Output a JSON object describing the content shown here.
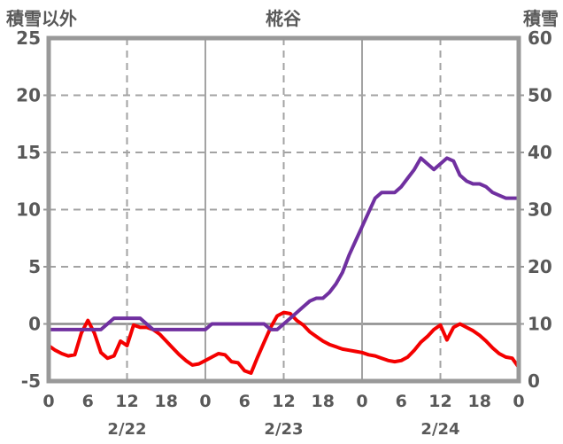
{
  "header": {
    "left_axis_title": "積雪以外",
    "title": "椛谷",
    "right_axis_title": "積雪"
  },
  "chart_data": {
    "type": "line",
    "title": "椛谷",
    "x_axis": {
      "unit": "hour",
      "total_hours": 72,
      "hour_ticks": [
        {
          "hour": 0,
          "label": "0"
        },
        {
          "hour": 6,
          "label": "6"
        },
        {
          "hour": 12,
          "label": "12"
        },
        {
          "hour": 18,
          "label": "18"
        },
        {
          "hour": 24,
          "label": "0"
        },
        {
          "hour": 30,
          "label": "6"
        },
        {
          "hour": 36,
          "label": "12"
        },
        {
          "hour": 42,
          "label": "18"
        },
        {
          "hour": 48,
          "label": "0"
        },
        {
          "hour": 54,
          "label": "6"
        },
        {
          "hour": 60,
          "label": "12"
        },
        {
          "hour": 66,
          "label": "18"
        },
        {
          "hour": 72,
          "label": "0"
        }
      ],
      "date_labels": [
        {
          "label": "2/22",
          "center_hour": 12
        },
        {
          "label": "2/23",
          "center_hour": 36
        },
        {
          "label": "2/24",
          "center_hour": 60
        }
      ],
      "solid_gridline_hours": [
        24,
        48
      ],
      "dashed_gridline_hours": [
        12,
        36,
        60
      ]
    },
    "left_axis": {
      "title": "積雪以外",
      "min": -5,
      "max": 25,
      "ticks": [
        25,
        20,
        15,
        10,
        5,
        0,
        -5
      ],
      "dashed_gridlines": [
        20,
        15,
        10,
        5
      ],
      "zero_line": 0
    },
    "right_axis": {
      "title": "積雪",
      "min": 0,
      "max": 60,
      "ticks": [
        60,
        50,
        40,
        30,
        20,
        10,
        0
      ]
    },
    "series": [
      {
        "name": "積雪以外",
        "axis": "left",
        "color": "#f40000",
        "values": [
          -1.9,
          -2.3,
          -2.6,
          -2.8,
          -2.7,
          -0.8,
          0.3,
          -0.8,
          -2.5,
          -3.0,
          -2.8,
          -1.5,
          -1.9,
          -0.1,
          -0.3,
          -0.3,
          -0.5,
          -0.9,
          -1.5,
          -2.1,
          -2.7,
          -3.2,
          -3.6,
          -3.5,
          -3.2,
          -2.9,
          -2.6,
          -2.7,
          -3.3,
          -3.4,
          -4.1,
          -4.3,
          -2.9,
          -1.6,
          -0.3,
          0.7,
          1.0,
          0.9,
          0.3,
          -0.1,
          -0.7,
          -1.1,
          -1.5,
          -1.8,
          -2.0,
          -2.2,
          -2.3,
          -2.4,
          -2.5,
          -2.7,
          -2.8,
          -3.0,
          -3.2,
          -3.3,
          -3.2,
          -2.9,
          -2.3,
          -1.6,
          -1.1,
          -0.5,
          -0.1,
          -1.4,
          -0.3,
          0.0,
          -0.3,
          -0.6,
          -1.0,
          -1.5,
          -2.1,
          -2.6,
          -2.9,
          -3.0,
          -3.8
        ]
      },
      {
        "name": "積雪",
        "axis": "right",
        "color": "#7030a0",
        "values": [
          9,
          9,
          9,
          9,
          9,
          9,
          9,
          9,
          9,
          10,
          11,
          11,
          11,
          11,
          11,
          10,
          9,
          9,
          9,
          9,
          9,
          9,
          9,
          9,
          9,
          10,
          10,
          10,
          10,
          10,
          10,
          10,
          10,
          10,
          9,
          9,
          10,
          11,
          12,
          13,
          14,
          14.5,
          14.5,
          15.5,
          17,
          19,
          22,
          24.5,
          27,
          29.5,
          32,
          33,
          33,
          33,
          34,
          35.5,
          37,
          39,
          38,
          37,
          38,
          39,
          38.5,
          36,
          35,
          34.5,
          34.5,
          34,
          33,
          32.5,
          32,
          32,
          32
        ]
      }
    ],
    "colors": {
      "text": "#595959",
      "grid": "#a3a3a3",
      "border": "#999999",
      "zero_line": "#8c8c8c"
    }
  }
}
